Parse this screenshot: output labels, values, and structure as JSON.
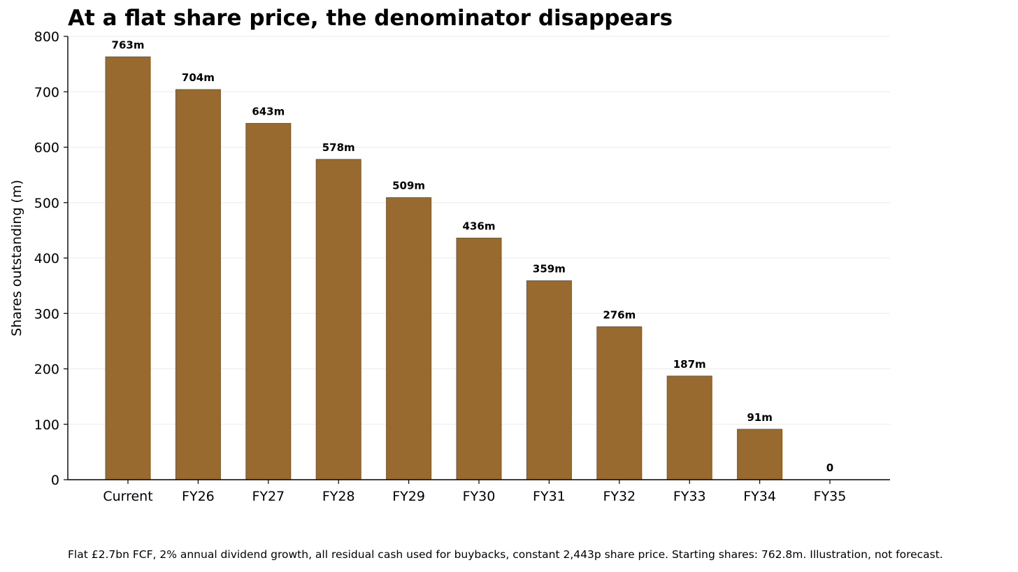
{
  "chart_data": {
    "type": "bar",
    "title": "At a flat share price, the denominator disappears",
    "xlabel": "",
    "ylabel": "Shares outstanding (m)",
    "categories": [
      "Current",
      "FY26",
      "FY27",
      "FY28",
      "FY29",
      "FY30",
      "FY31",
      "FY32",
      "FY33",
      "FY34",
      "FY35"
    ],
    "values": [
      763,
      704,
      643,
      578,
      509,
      436,
      359,
      276,
      187,
      91,
      0
    ],
    "data_labels": [
      "763m",
      "704m",
      "643m",
      "578m",
      "509m",
      "436m",
      "359m",
      "276m",
      "187m",
      "91m",
      "0"
    ],
    "ylim": [
      0,
      800
    ],
    "yticks": [
      0,
      100,
      200,
      300,
      400,
      500,
      600,
      700,
      800
    ],
    "grid": "horizontal",
    "bar_color": "#996a2f",
    "bar_edge_color": "#7a5422",
    "grid_color": "#ebebeb"
  },
  "footnote": "Flat £2.7bn FCF, 2% annual dividend growth, all residual cash used for buybacks, constant 2,443p share price. Starting shares: 762.8m. Illustration, not forecast."
}
